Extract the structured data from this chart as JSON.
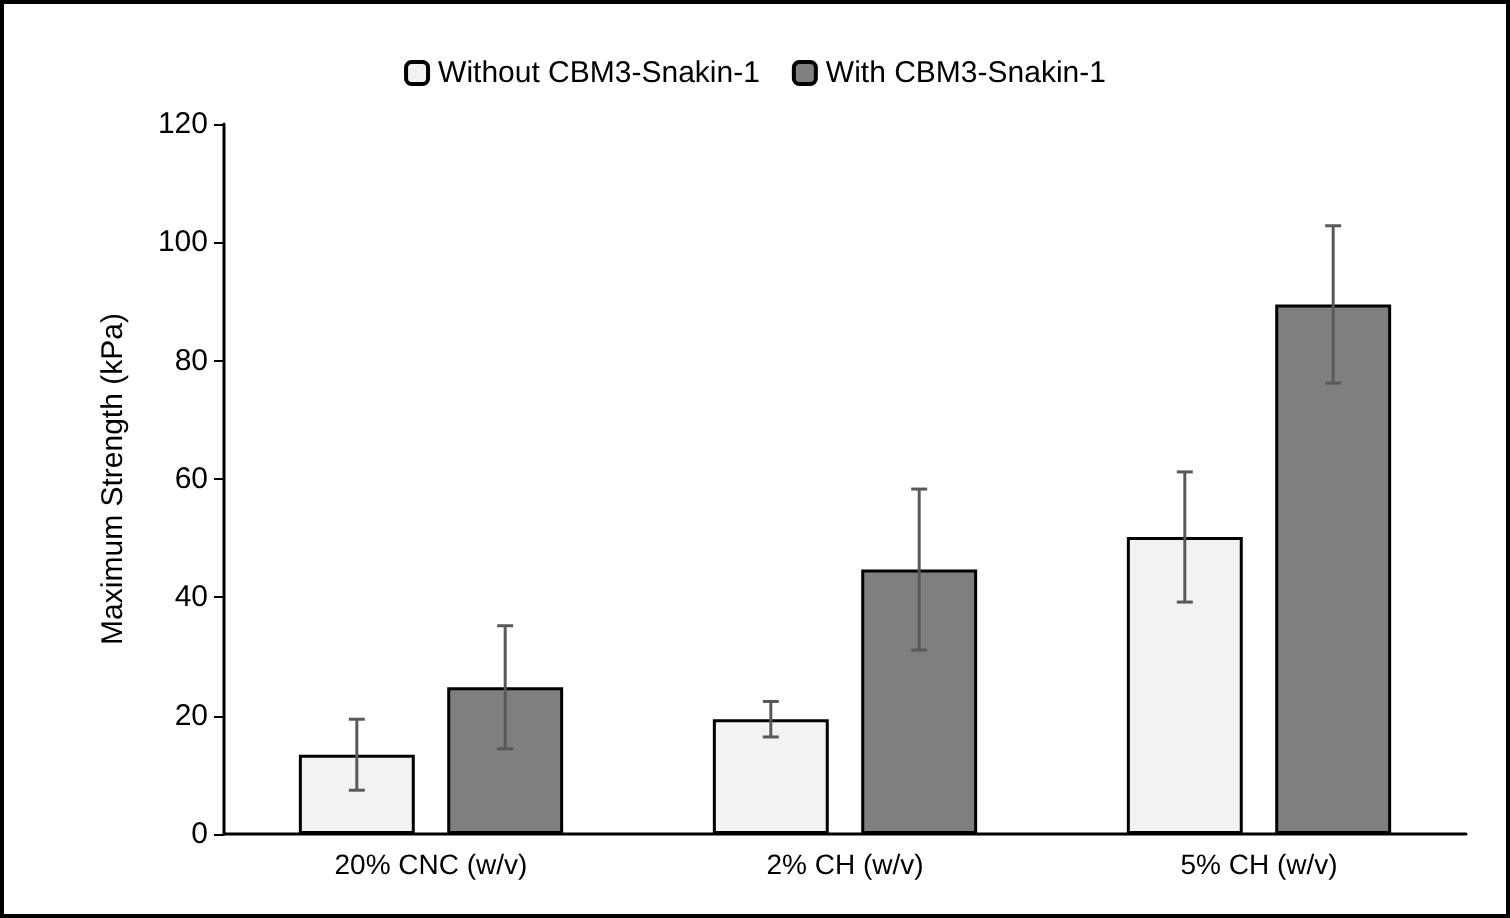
{
  "chart_data": {
    "type": "bar",
    "ylabel": "Maximum Strength (kPa)",
    "categories": [
      "20% CNC (w/v)",
      "2% CH (w/v)",
      "5% CH (w/v)"
    ],
    "series": [
      {
        "name": "Without CBM3-Snakin-1",
        "color": "#f2f2f2",
        "values": [
          13.4,
          19.4,
          50.2
        ],
        "errors": [
          6,
          3,
          11
        ]
      },
      {
        "name": "With CBM3-Snakin-1",
        "color": "#7f7f7f",
        "values": [
          24.8,
          44.7,
          89.5
        ],
        "errors": [
          10.4,
          13.6,
          13.3
        ]
      }
    ],
    "ylim": [
      0,
      120
    ],
    "yticks": [
      0,
      20,
      40,
      60,
      80,
      100,
      120
    ],
    "grid": false,
    "legend": "top"
  }
}
